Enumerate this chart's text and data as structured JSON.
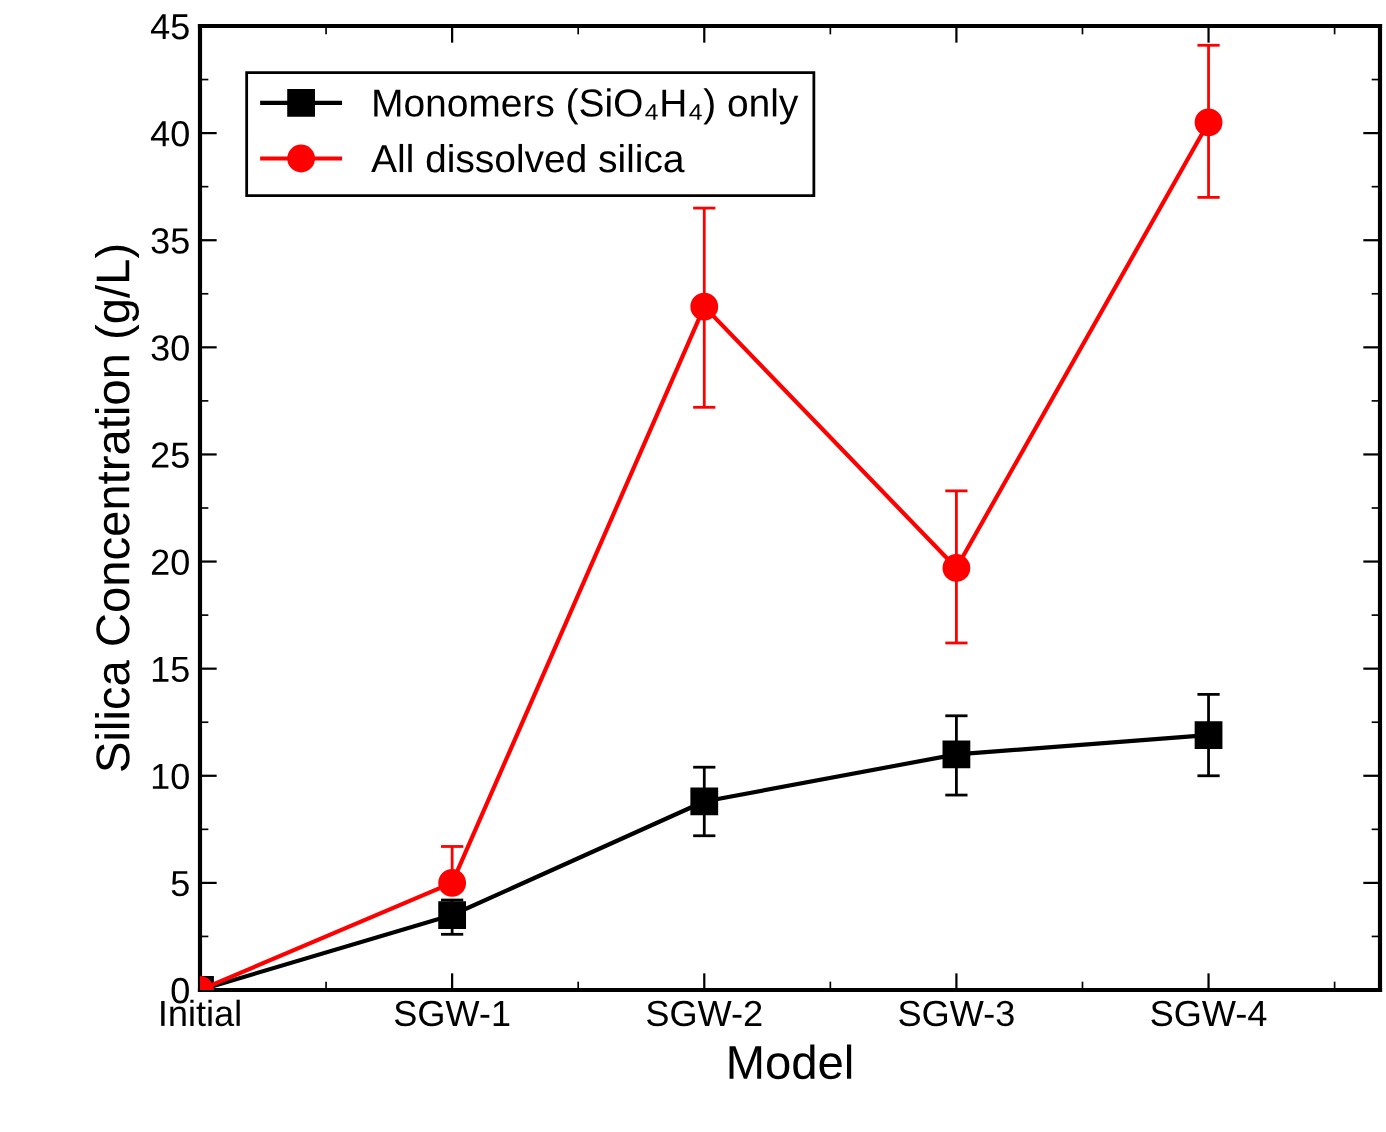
{
  "chart_data": {
    "type": "line",
    "xlabel": "Model",
    "ylabel": "Silica Concentration (g/L)",
    "categories": [
      "Initial",
      "SGW-1",
      "SGW-2",
      "SGW-3",
      "SGW-4"
    ],
    "series": [
      {
        "name": "Monomers (SiO₄H₄) only",
        "color": "#000000",
        "marker": "square",
        "values": [
          0,
          3.5,
          8.8,
          11.0,
          11.9
        ],
        "errors": [
          null,
          [
            2.6,
            4.2
          ],
          [
            7.2,
            10.4
          ],
          [
            9.1,
            12.8
          ],
          [
            10.0,
            13.8
          ]
        ]
      },
      {
        "name": "All dissolved silica",
        "color": "#ff0000",
        "marker": "circle",
        "values": [
          0,
          5.0,
          31.9,
          19.7,
          40.5
        ],
        "errors": [
          null,
          [
            5.0,
            6.7
          ],
          [
            27.2,
            36.5
          ],
          [
            16.2,
            23.3
          ],
          [
            37.0,
            44.1
          ]
        ]
      }
    ],
    "ylim": [
      0,
      45
    ],
    "yticks": [
      0,
      5,
      10,
      15,
      20,
      25,
      30,
      35,
      40,
      45
    ],
    "legend": "top left",
    "grid": false
  }
}
